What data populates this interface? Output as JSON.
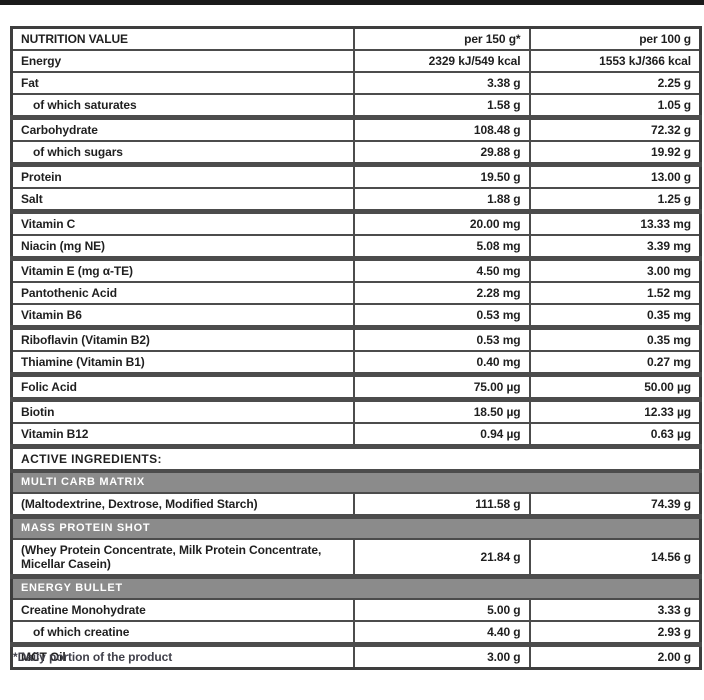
{
  "colors": {
    "band_bg": "#8b8b8b",
    "border": "#4c4c4c",
    "text": "#1f1f1f",
    "band_text": "#ffffff"
  },
  "table": {
    "header": {
      "col1": "NUTRITION VALUE",
      "col2": "per 150 g*",
      "col3": "per 100 g"
    },
    "nutrition_rows": [
      {
        "label": "Energy",
        "per150": "2329 kJ/549 kcal",
        "per100": "1553 kJ/366 kcal",
        "indent": false,
        "thick": false
      },
      {
        "label": "Fat",
        "per150": "3.38 g",
        "per100": "2.25 g",
        "indent": false,
        "thick": false
      },
      {
        "label": "of which saturates",
        "per150": "1.58 g",
        "per100": "1.05 g",
        "indent": true,
        "thick": true
      },
      {
        "label": "Carbohydrate",
        "per150": "108.48 g",
        "per100": "72.32 g",
        "indent": false,
        "thick": false
      },
      {
        "label": "of which sugars",
        "per150": "29.88 g",
        "per100": "19.92 g",
        "indent": true,
        "thick": true
      },
      {
        "label": "Protein",
        "per150": "19.50 g",
        "per100": "13.00 g",
        "indent": false,
        "thick": false
      },
      {
        "label": "Salt",
        "per150": "1.88 g",
        "per100": "1.25 g",
        "indent": false,
        "thick": true
      },
      {
        "label": "Vitamin C",
        "per150": "20.00 mg",
        "per100": "13.33 mg",
        "indent": false,
        "thick": false
      },
      {
        "label": "Niacin (mg NE)",
        "per150": "5.08 mg",
        "per100": "3.39 mg",
        "indent": false,
        "thick": true
      },
      {
        "label": "Vitamin E (mg α-TE)",
        "per150": "4.50 mg",
        "per100": "3.00 mg",
        "indent": false,
        "thick": false
      },
      {
        "label": "Pantothenic Acid",
        "per150": "2.28 mg",
        "per100": "1.52 mg",
        "indent": false,
        "thick": false
      },
      {
        "label": "Vitamin B6",
        "per150": "0.53 mg",
        "per100": "0.35 mg",
        "indent": false,
        "thick": true
      },
      {
        "label": "Riboflavin (Vitamin B2)",
        "per150": "0.53 mg",
        "per100": "0.35 mg",
        "indent": false,
        "thick": false
      },
      {
        "label": "Thiamine (Vitamin B1)",
        "per150": "0.40 mg",
        "per100": "0.27 mg",
        "indent": false,
        "thick": true
      },
      {
        "label": "Folic Acid",
        "per150": "75.00 µg",
        "per100": "50.00 µg",
        "indent": false,
        "thick": true
      },
      {
        "label": "Biotin",
        "per150": "18.50 µg",
        "per100": "12.33 µg",
        "indent": false,
        "thick": false
      },
      {
        "label": "Vitamin B12",
        "per150": "0.94 µg",
        "per100": "0.63 µg",
        "indent": false,
        "thick": true
      }
    ],
    "active_ingredients_header": "ACTIVE INGREDIENTS:",
    "sections": [
      {
        "band": "MULTI CARB MATRIX",
        "rows": [
          {
            "label": "(Maltodextrine, Dextrose, Modified Starch)",
            "per150": "111.58 g",
            "per100": "74.39 g",
            "indent": false,
            "thick": true
          }
        ]
      },
      {
        "band": "MASS PROTEIN SHOT",
        "rows": [
          {
            "label": "(Whey Protein Concentrate, Milk Protein Concentrate, Micellar Casein)",
            "per150": "21.84 g",
            "per100": "14.56 g",
            "indent": false,
            "thick": true
          }
        ]
      },
      {
        "band": "ENERGY BULLET",
        "rows": [
          {
            "label": "Creatine Monohydrate",
            "per150": "5.00 g",
            "per100": "3.33 g",
            "indent": false,
            "thick": false
          },
          {
            "label": "of which creatine",
            "per150": "4.40 g",
            "per100": "2.93 g",
            "indent": true,
            "thick": true
          },
          {
            "label": "MCT Oil",
            "per150": "3.00 g",
            "per100": "2.00 g",
            "indent": false,
            "thick": false
          }
        ]
      }
    ],
    "footnote": "*Daily portion of the product"
  }
}
